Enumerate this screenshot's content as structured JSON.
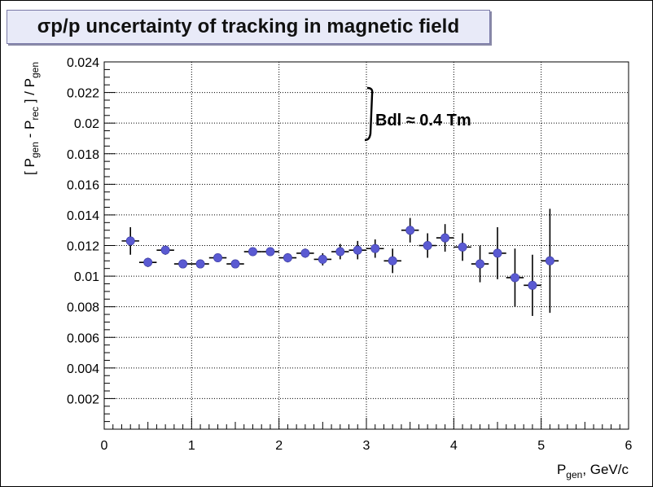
{
  "chart_data": {
    "type": "scatter",
    "title": "σp/p uncertainty of tracking in magnetic field",
    "xlabel": {
      "main": "P",
      "sub": "gen",
      "suffix": ",  GeV/c"
    },
    "ylabel": {
      "parts": [
        {
          "t": "[ P",
          "sub": false
        },
        {
          "t": "gen",
          "sub": true
        },
        {
          "t": " - P",
          "sub": false
        },
        {
          "t": "rec",
          "sub": true
        },
        {
          "t": " ] / P",
          "sub": false
        },
        {
          "t": "gen",
          "sub": true
        }
      ]
    },
    "annotation": "Bdl ≈ 0.4 Tm",
    "xlim": [
      0,
      6
    ],
    "ylim": [
      0,
      0.024
    ],
    "x_ticks": [
      "0",
      "1",
      "2",
      "3",
      "4",
      "5",
      "6"
    ],
    "y_ticks": [
      "0.002",
      "0.004",
      "0.006",
      "0.008",
      "0.01",
      "0.012",
      "0.014",
      "0.016",
      "0.018",
      "0.02",
      "0.022",
      "0.024"
    ],
    "grid": true,
    "marker_color": "#5a5ad2",
    "x_halfwidth": 0.1,
    "points": [
      {
        "x": 0.3,
        "y": 0.0123,
        "err": 0.0009
      },
      {
        "x": 0.5,
        "y": 0.0109,
        "err": 0.0003
      },
      {
        "x": 0.7,
        "y": 0.0117,
        "err": 0.0003
      },
      {
        "x": 0.9,
        "y": 0.0108,
        "err": 0.0002
      },
      {
        "x": 1.1,
        "y": 0.0108,
        "err": 0.0002
      },
      {
        "x": 1.3,
        "y": 0.0112,
        "err": 0.0002
      },
      {
        "x": 1.5,
        "y": 0.0108,
        "err": 0.0002
      },
      {
        "x": 1.7,
        "y": 0.0116,
        "err": 0.0002
      },
      {
        "x": 1.9,
        "y": 0.0116,
        "err": 0.0002
      },
      {
        "x": 2.1,
        "y": 0.0112,
        "err": 0.0003
      },
      {
        "x": 2.3,
        "y": 0.0115,
        "err": 0.0003
      },
      {
        "x": 2.5,
        "y": 0.0111,
        "err": 0.0004
      },
      {
        "x": 2.7,
        "y": 0.0116,
        "err": 0.0005
      },
      {
        "x": 2.9,
        "y": 0.0117,
        "err": 0.0006
      },
      {
        "x": 3.1,
        "y": 0.0118,
        "err": 0.0006
      },
      {
        "x": 3.3,
        "y": 0.011,
        "err": 0.0008
      },
      {
        "x": 3.5,
        "y": 0.013,
        "err": 0.0008
      },
      {
        "x": 3.7,
        "y": 0.012,
        "err": 0.0008
      },
      {
        "x": 3.9,
        "y": 0.0125,
        "err": 0.0009
      },
      {
        "x": 4.1,
        "y": 0.0119,
        "err": 0.0009
      },
      {
        "x": 4.3,
        "y": 0.0108,
        "err": 0.0012
      },
      {
        "x": 4.5,
        "y": 0.0115,
        "err": 0.0017
      },
      {
        "x": 4.7,
        "y": 0.0099,
        "err": 0.0019
      },
      {
        "x": 4.9,
        "y": 0.0094,
        "err": 0.002
      },
      {
        "x": 5.1,
        "y": 0.011,
        "err": 0.0034
      }
    ]
  }
}
